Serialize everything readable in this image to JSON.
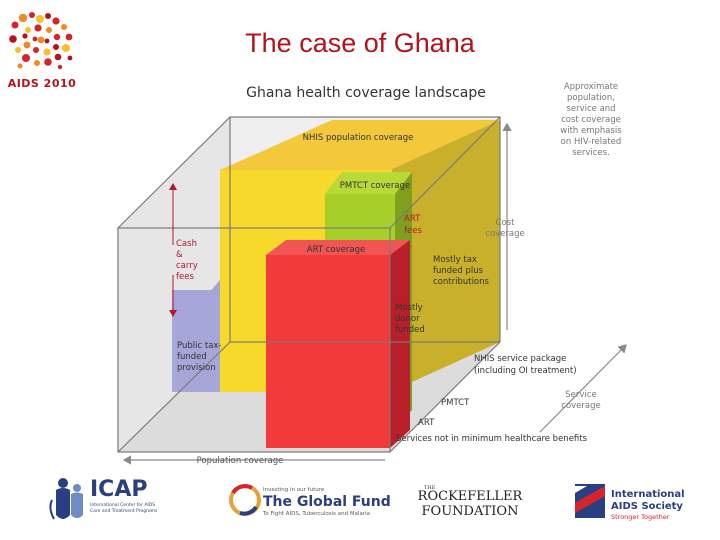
{
  "slide": {
    "title": "The case of Ghana",
    "conference_logo_text": "AIDS 2010"
  },
  "diagram": {
    "heading": "Ghana health coverage landscape",
    "note": [
      "Approximate",
      "population,",
      "service and",
      "cost coverage",
      "with emphasis",
      "on HIV-related",
      "services."
    ],
    "cost_coverage": [
      "Cost",
      "coverage"
    ],
    "service_coverage": [
      "Service",
      "coverage"
    ],
    "population_coverage": "Population coverage",
    "nhis_population_coverage": "NHIS population coverage",
    "pmtct_coverage": "PMTCT coverage",
    "art_coverage": "ART coverage",
    "art_fees": [
      "ART",
      "fees"
    ],
    "cash_carry_fees": [
      "Cash",
      "&",
      "carry",
      "fees"
    ],
    "public_tax_funded": [
      "Public tax-",
      "funded",
      "provision"
    ],
    "mostly_tax_funded": [
      "Mostly tax",
      "funded plus",
      "contributions"
    ],
    "mostly_donor_funded": [
      "Mostly",
      "donor",
      "funded"
    ],
    "nhis_service_package": [
      "NHIS service package",
      "(including OI treatment)"
    ],
    "pmtct": "PMTCT",
    "art": "ART",
    "services_not_minimum": "Services not in minimum healthcare benefits"
  },
  "sponsors": {
    "icap": {
      "name": "ICAP",
      "caption": [
        "International Center for AIDS",
        "Care and Treatment Programs"
      ]
    },
    "global_fund": {
      "tagline": "Investing in our future",
      "name": "The Global Fund",
      "caption": "To Fight AIDS, Tuberculosis and Malaria"
    },
    "rockefeller": {
      "line1": "ROCKEFELLER",
      "line2": "FOUNDATION",
      "prefix": "THE"
    },
    "ias": {
      "line1": "International",
      "line2": "AIDS Society",
      "tagline": "Stronger Together"
    }
  },
  "colors": {
    "title": "#b5121b",
    "yellow": "#f6d92b",
    "green": "#a7cf2a",
    "red": "#f23a3a",
    "purple": "#a3a3d6",
    "grey_panel": "#e3e3e3"
  }
}
